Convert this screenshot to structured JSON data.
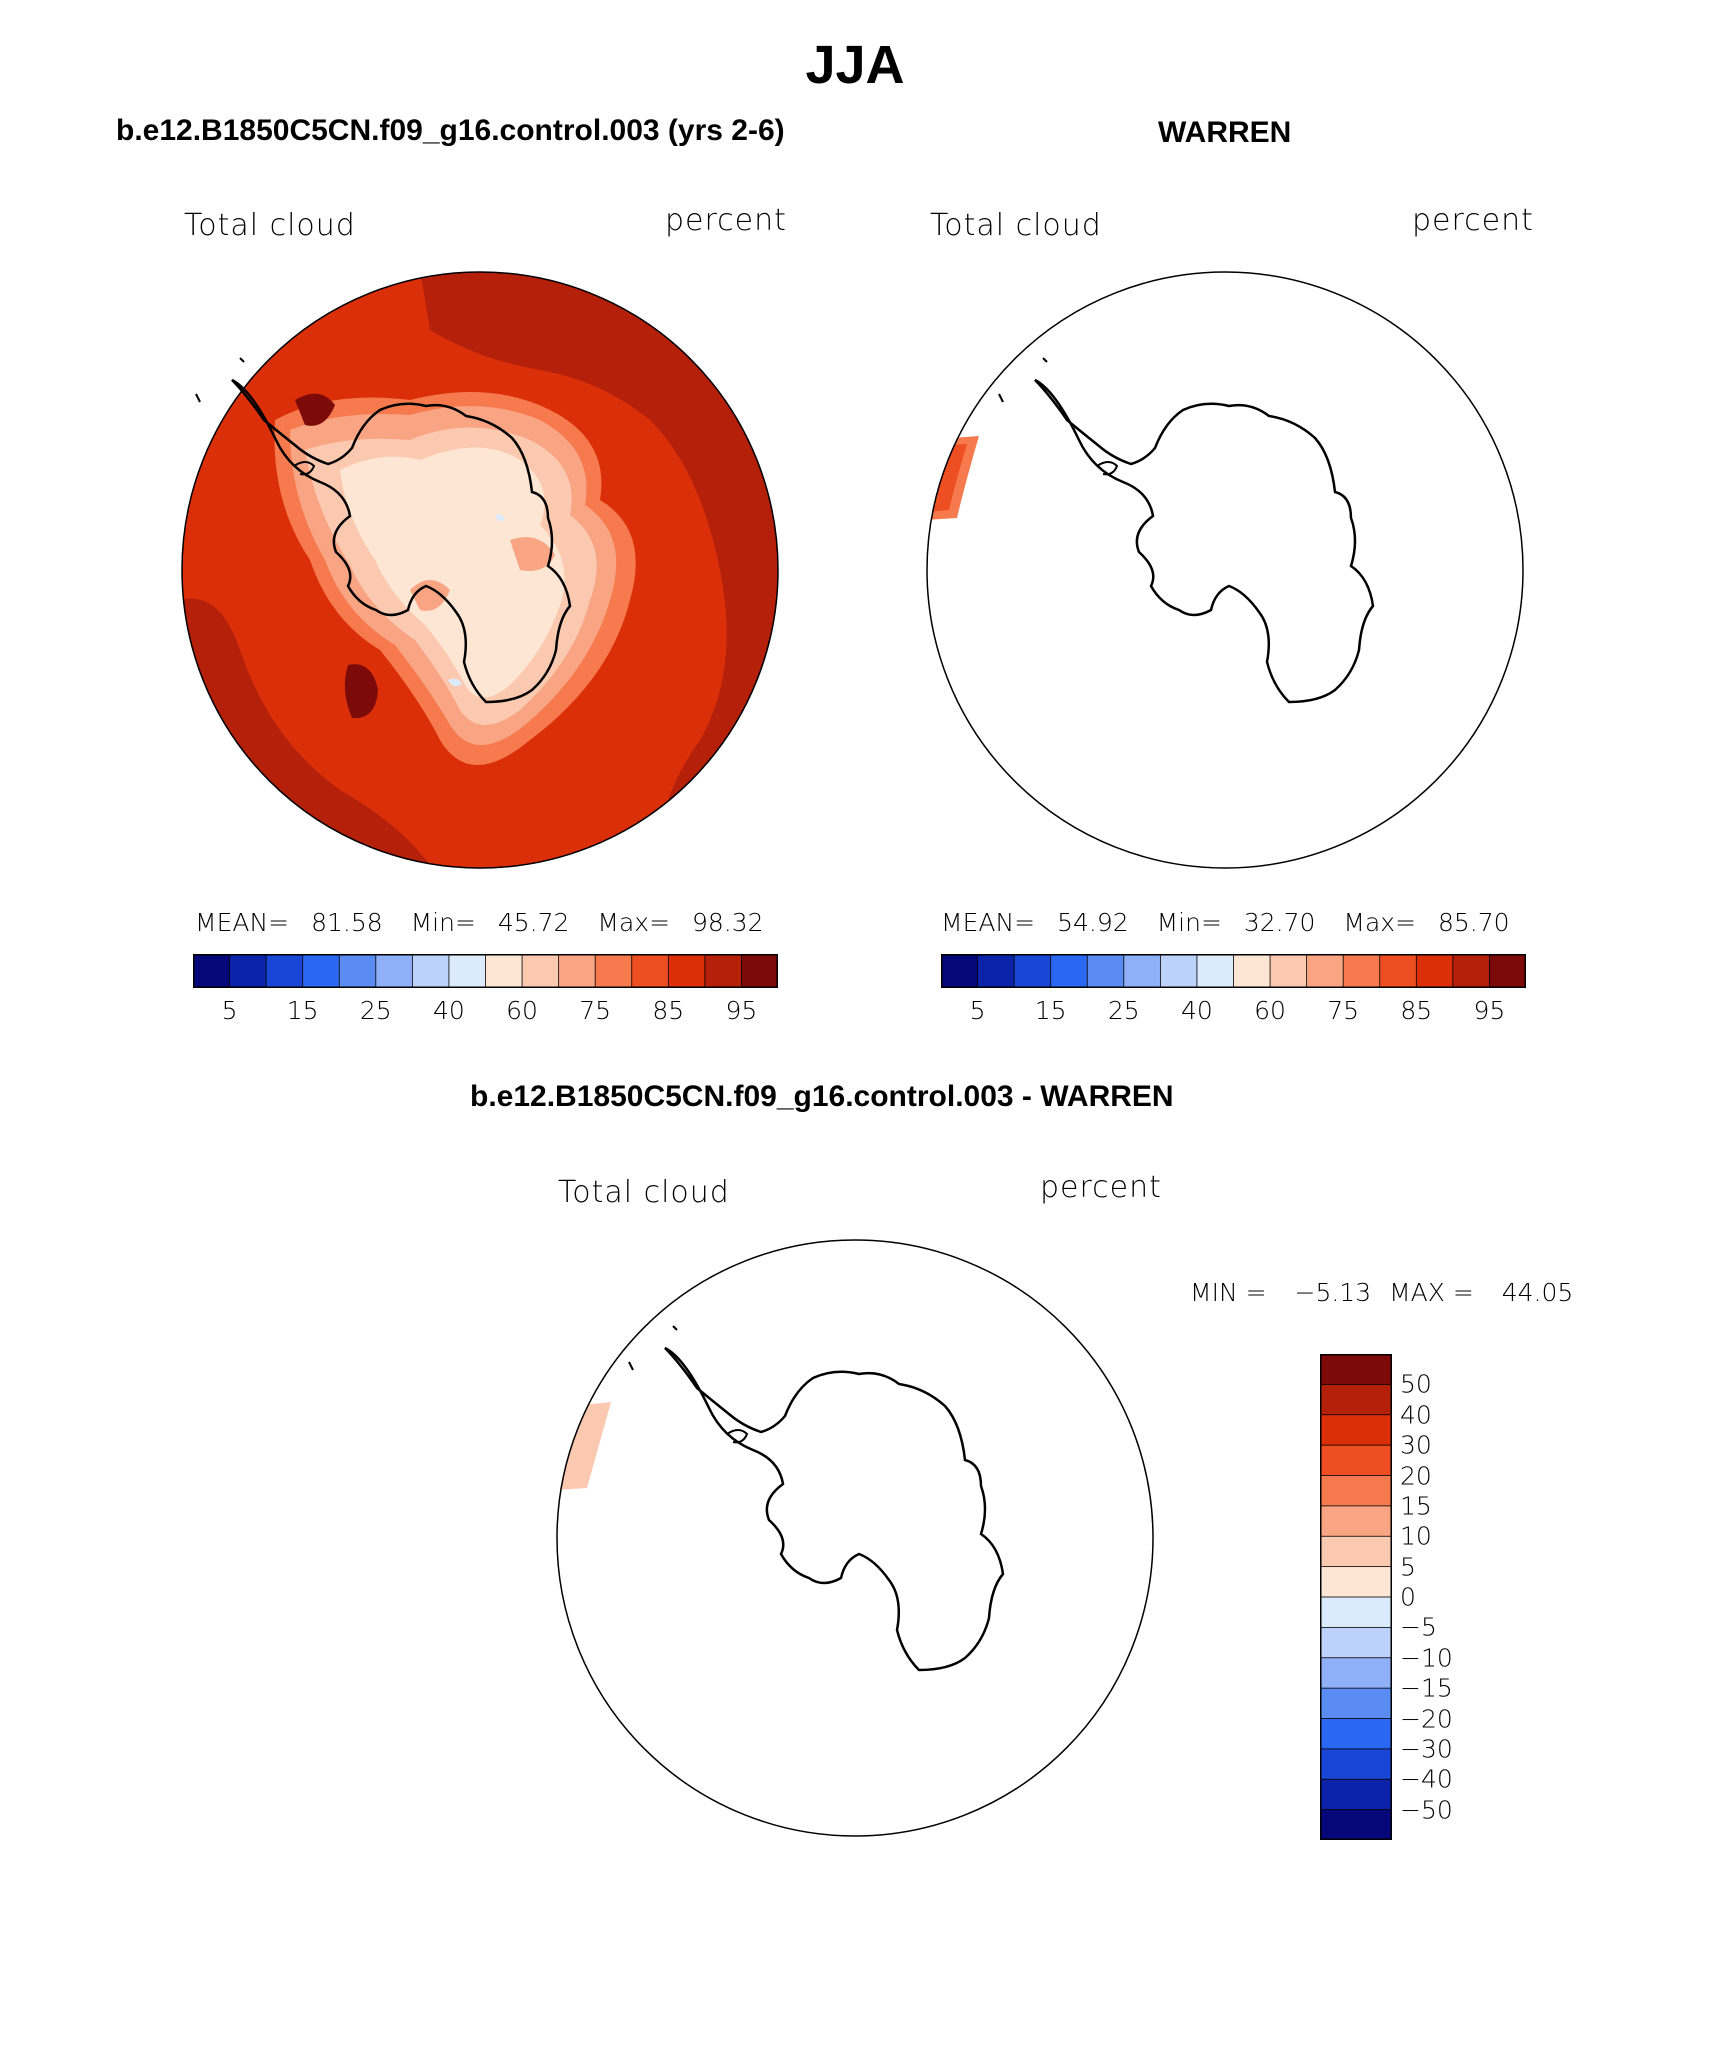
{
  "main_title": "JJA",
  "panel_a": {
    "case_title": "b.e12.B1850C5CN.f09_g16.control.003 (yrs 2-6)",
    "variable": "Total cloud",
    "units": "percent",
    "stats": {
      "mean_label": "MEAN=",
      "mean": "81.58",
      "min_label": "Min=",
      "min": "45.72",
      "max_label": "Max=",
      "max": "98.32"
    },
    "colorbar_ticks": [
      "5",
      "15",
      "25",
      "40",
      "60",
      "75",
      "85",
      "95"
    ]
  },
  "panel_b": {
    "case_title": "WARREN",
    "variable": "Total cloud",
    "units": "percent",
    "stats": {
      "mean_label": "MEAN=",
      "mean": "54.92",
      "min_label": "Min=",
      "min": "32.70",
      "max_label": "Max=",
      "max": "85.70"
    },
    "colorbar_ticks": [
      "5",
      "15",
      "25",
      "40",
      "60",
      "75",
      "85",
      "95"
    ]
  },
  "panel_diff": {
    "case_title": "b.e12.B1850C5CN.f09_g16.control.003 - WARREN",
    "variable": "Total cloud",
    "units": "percent",
    "minmax": {
      "min_label": "MIN =",
      "min": "−5.13",
      "max_label": "MAX =",
      "max": "44.05"
    },
    "colorbar_ticks": [
      "50",
      "40",
      "30",
      "20",
      "15",
      "10",
      "5",
      "0",
      "−5",
      "−10",
      "−15",
      "−20",
      "−30",
      "−40",
      "−50"
    ]
  },
  "colors": {
    "abs_scale": [
      "#06087a",
      "#0a23a8",
      "#1a46d6",
      "#2a68f2",
      "#5a8cf4",
      "#8fb0f8",
      "#bcd2fb",
      "#dcebfb",
      "#fde6d3",
      "#fbc9b0",
      "#f9a584",
      "#f67a4e",
      "#ee4f22",
      "#db2f0a",
      "#b4200a",
      "#7c0a08"
    ],
    "diff_scale": [
      "#7c0a08",
      "#b4200a",
      "#db2f0a",
      "#ee4f22",
      "#f67a4e",
      "#f9a584",
      "#fbc9b0",
      "#fde6d3",
      "#dcebfb",
      "#bcd2fb",
      "#8fb0f8",
      "#5a8cf4",
      "#2a68f2",
      "#1a46d6",
      "#0a23a8",
      "#06087a"
    ]
  }
}
